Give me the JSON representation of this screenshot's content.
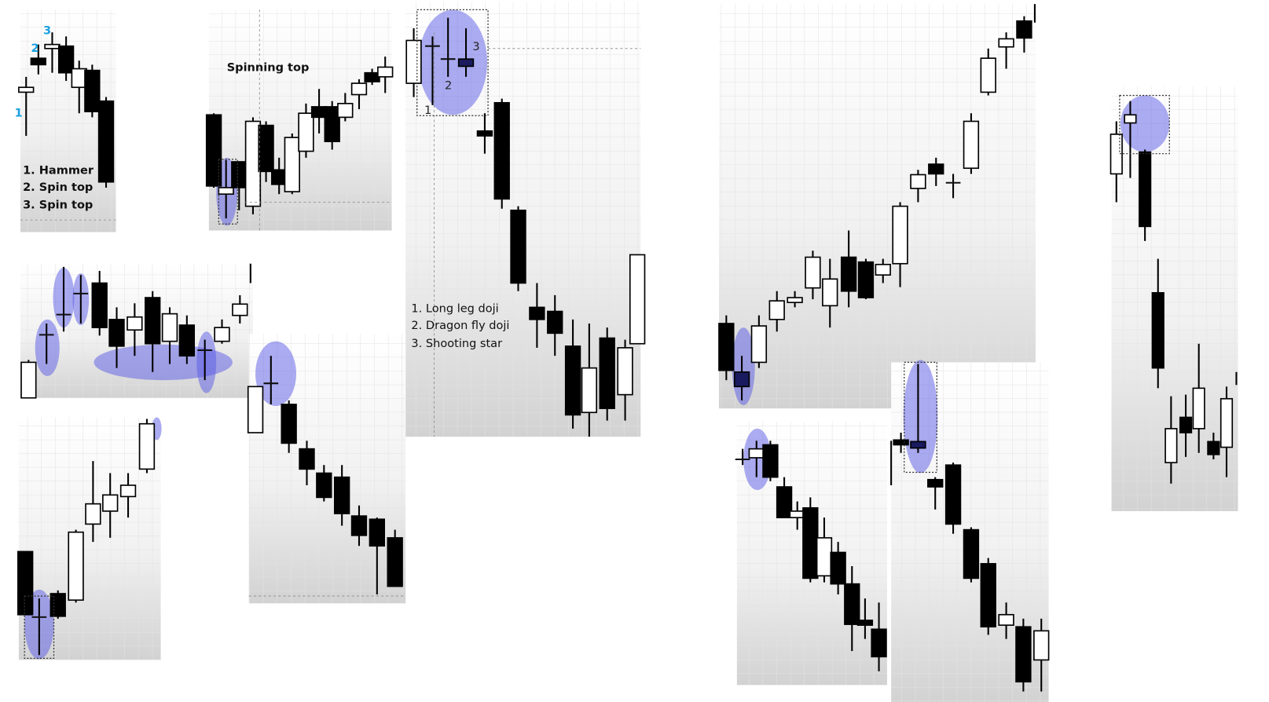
{
  "panels": [
    {
      "labels": [
        "1",
        "2",
        "3"
      ],
      "legend": [
        "1. Hammer",
        "2. Spin top",
        "3. Spin top"
      ]
    },
    {
      "title": "Spinning top"
    },
    {
      "labels": [
        "1",
        "2",
        "3"
      ],
      "legend": [
        "1. Long leg doji",
        "2. Dragon fly doji",
        "3. Shooting star"
      ]
    }
  ]
}
